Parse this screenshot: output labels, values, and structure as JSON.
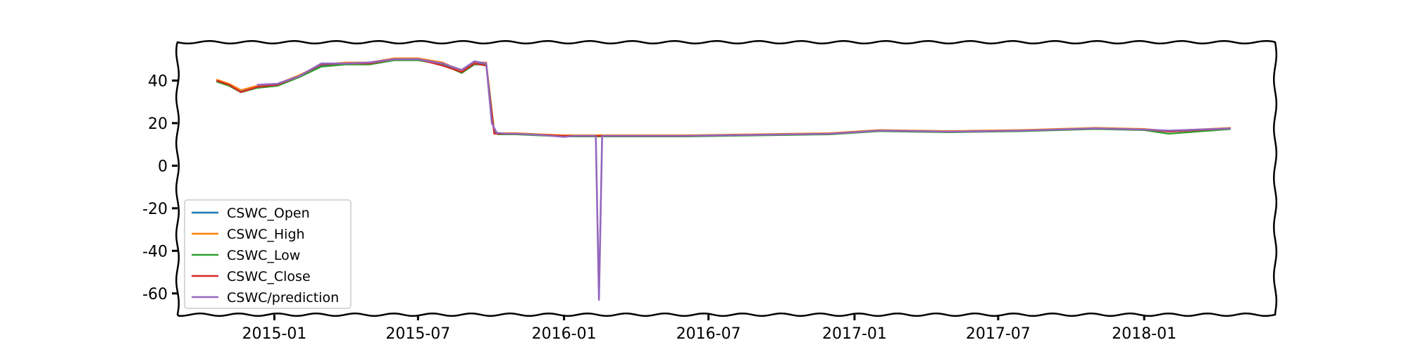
{
  "chart_data": {
    "type": "line",
    "title": "",
    "xlabel": "",
    "ylabel": "",
    "xlim": [
      "2014-09-01",
      "2018-06-15"
    ],
    "ylim": [
      -70,
      58
    ],
    "yticks": [
      40,
      20,
      0,
      -20,
      -40,
      -60
    ],
    "ytick_labels": [
      "40",
      "20",
      "0",
      "-20",
      "-40",
      "-60"
    ],
    "xticks": [
      "2015-01-01",
      "2015-07-01",
      "2016-01-01",
      "2016-07-01",
      "2017-01-01",
      "2017-07-01",
      "2018-01-01"
    ],
    "xtick_labels": [
      "2015-01",
      "2015-07",
      "2016-01",
      "2016-07",
      "2017-01",
      "2017-07",
      "2018-01"
    ],
    "grid": false,
    "legend_position": "lower-left",
    "style": "xkcd",
    "series": [
      {
        "name": "CSWC_Open",
        "color": "#1f77b4",
        "x": [
          "2014-10-20",
          "2014-11-05",
          "2014-11-20",
          "2014-12-10",
          "2015-01-05",
          "2015-02-01",
          "2015-03-01",
          "2015-04-01",
          "2015-05-01",
          "2015-06-01",
          "2015-07-01",
          "2015-08-01",
          "2015-08-25",
          "2015-09-10",
          "2015-09-25",
          "2015-10-05",
          "2015-10-10",
          "2015-11-01",
          "2015-12-01",
          "2016-01-01",
          "2016-02-01",
          "2016-03-01",
          "2016-06-01",
          "2016-09-01",
          "2016-12-01",
          "2017-02-01",
          "2017-05-01",
          "2017-08-01",
          "2017-11-01",
          "2018-01-01",
          "2018-02-01",
          "2018-04-20"
        ],
        "y": [
          40,
          38,
          35,
          37,
          38,
          42,
          47,
          48,
          48,
          50,
          50,
          48,
          44,
          48,
          48,
          16,
          15,
          15,
          14.5,
          14,
          14,
          14,
          14,
          14.5,
          15,
          16.5,
          16,
          16.5,
          17.5,
          17,
          16,
          17.5
        ]
      },
      {
        "name": "CSWC_High",
        "color": "#ff7f0e",
        "x": [
          "2014-10-20",
          "2014-11-05",
          "2014-11-20",
          "2014-12-10",
          "2015-01-05",
          "2015-02-01",
          "2015-03-01",
          "2015-04-01",
          "2015-05-01",
          "2015-06-01",
          "2015-07-01",
          "2015-08-01",
          "2015-08-25",
          "2015-09-10",
          "2015-09-25",
          "2015-10-05",
          "2015-10-10",
          "2015-11-01",
          "2015-12-01",
          "2016-01-01",
          "2016-02-01",
          "2016-03-01",
          "2016-06-01",
          "2016-09-01",
          "2016-12-01",
          "2017-02-01",
          "2017-05-01",
          "2017-08-01",
          "2017-11-01",
          "2018-01-01",
          "2018-02-01",
          "2018-04-20"
        ],
        "y": [
          40.5,
          38.5,
          35.5,
          37.5,
          38.5,
          42.5,
          47.5,
          48.5,
          48.5,
          50.5,
          50.5,
          48.5,
          44.5,
          48.5,
          48.5,
          16.3,
          15.3,
          15.3,
          14.8,
          14.3,
          14.3,
          14.3,
          14.3,
          14.8,
          15.3,
          16.8,
          16.3,
          16.8,
          17.8,
          17.3,
          16.3,
          17.8
        ]
      },
      {
        "name": "CSWC_Low",
        "color": "#2ca02c",
        "x": [
          "2014-10-20",
          "2014-11-05",
          "2014-11-20",
          "2014-12-10",
          "2015-01-05",
          "2015-02-01",
          "2015-03-01",
          "2015-04-01",
          "2015-05-01",
          "2015-06-01",
          "2015-07-01",
          "2015-08-01",
          "2015-08-25",
          "2015-09-10",
          "2015-09-25",
          "2015-10-05",
          "2015-10-10",
          "2015-11-01",
          "2015-12-01",
          "2016-01-01",
          "2016-02-01",
          "2016-03-01",
          "2016-06-01",
          "2016-09-01",
          "2016-12-01",
          "2017-02-01",
          "2017-05-01",
          "2017-08-01",
          "2017-11-01",
          "2018-01-01",
          "2018-02-01",
          "2018-04-20"
        ],
        "y": [
          39.5,
          37.5,
          34.5,
          36.5,
          37.5,
          41.5,
          46.5,
          47.5,
          47.5,
          49.5,
          49.5,
          47.5,
          43.5,
          47.5,
          47.5,
          15.7,
          14.7,
          14.7,
          14.2,
          13.7,
          13.7,
          13.7,
          13.7,
          14.2,
          14.7,
          16.2,
          15.7,
          16.2,
          17.2,
          16.7,
          15,
          17.2
        ]
      },
      {
        "name": "CSWC_Close",
        "color": "#d62728",
        "x": [
          "2014-10-20",
          "2014-11-05",
          "2014-11-20",
          "2014-12-10",
          "2015-01-05",
          "2015-02-01",
          "2015-03-01",
          "2015-04-01",
          "2015-05-01",
          "2015-06-01",
          "2015-07-01",
          "2015-08-01",
          "2015-08-25",
          "2015-09-10",
          "2015-09-25",
          "2015-10-05",
          "2015-10-10",
          "2015-11-01",
          "2015-12-01",
          "2016-01-01",
          "2016-02-01",
          "2016-03-01",
          "2016-06-01",
          "2016-09-01",
          "2016-12-01",
          "2017-02-01",
          "2017-05-01",
          "2017-08-01",
          "2017-11-01",
          "2018-01-01",
          "2018-02-01",
          "2018-04-20"
        ],
        "y": [
          40,
          38,
          34.5,
          37,
          38,
          42,
          47.5,
          48,
          48,
          50,
          50,
          47,
          44,
          48,
          47,
          15,
          15,
          15,
          14.5,
          14,
          14,
          14,
          14,
          14.5,
          15,
          16.5,
          16,
          16.5,
          17.5,
          17,
          16,
          17.5
        ]
      },
      {
        "name": "CSWC/prediction",
        "color": "#9467bd",
        "x": [
          "2014-12-10",
          "2015-01-05",
          "2015-02-01",
          "2015-03-01",
          "2015-04-01",
          "2015-05-01",
          "2015-06-01",
          "2015-07-01",
          "2015-08-01",
          "2015-08-25",
          "2015-09-10",
          "2015-09-25",
          "2015-10-02",
          "2015-10-08",
          "2015-10-20",
          "2015-11-01",
          "2015-12-01",
          "2016-01-01",
          "2016-01-15",
          "2016-02-10",
          "2016-02-14",
          "2016-02-18",
          "2016-03-01",
          "2016-06-01",
          "2016-09-01",
          "2016-12-01",
          "2017-02-01",
          "2017-05-01",
          "2017-08-01",
          "2017-11-01",
          "2018-01-01",
          "2018-02-01",
          "2018-04-20"
        ],
        "y": [
          38,
          38.5,
          42,
          48,
          48,
          48.5,
          50,
          50,
          48,
          45,
          49,
          48,
          20,
          15.5,
          15,
          15,
          14.5,
          13.5,
          14,
          14,
          -63,
          14,
          14,
          14,
          14.5,
          15,
          16.5,
          16,
          16.5,
          17.5,
          17,
          16.5,
          17.5
        ]
      }
    ]
  }
}
